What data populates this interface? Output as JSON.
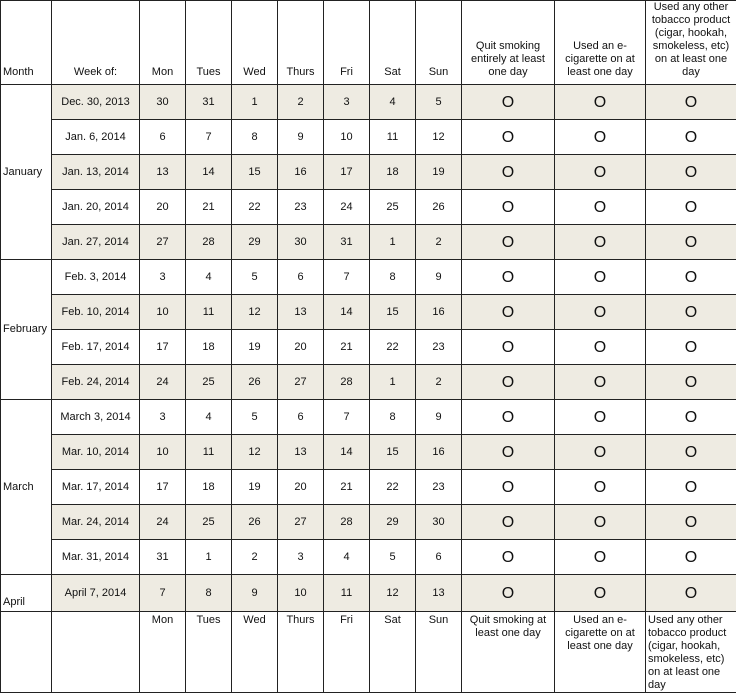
{
  "header": {
    "month": "Month",
    "week_of": "Week of:",
    "days": [
      "Mon",
      "Tues",
      "Wed",
      "Thurs",
      "Fri",
      "Sat",
      "Sun"
    ],
    "quit": "Quit smoking entirely at least one day",
    "ecig": "Used an e-cigarette on at least one day",
    "other": "Used any other tobacco product (cigar, hookah, smokeless, etc) on at least one day"
  },
  "months": [
    {
      "label": "January",
      "rows": 5
    },
    {
      "label": "February",
      "rows": 4
    },
    {
      "label": "March",
      "rows": 5
    },
    {
      "label": "April",
      "rows": 1
    }
  ],
  "circle": "O",
  "shade_color": "#eeebe2",
  "rows": [
    {
      "week": "Dec. 30, 2013",
      "days": [
        "30",
        "31",
        "1",
        "2",
        "3",
        "4",
        "5"
      ]
    },
    {
      "week": "Jan. 6, 2014",
      "days": [
        "6",
        "7",
        "8",
        "9",
        "10",
        "11",
        "12"
      ]
    },
    {
      "week": "Jan. 13, 2014",
      "days": [
        "13",
        "14",
        "15",
        "16",
        "17",
        "18",
        "19"
      ]
    },
    {
      "week": "Jan. 20, 2014",
      "days": [
        "20",
        "21",
        "22",
        "23",
        "24",
        "25",
        "26"
      ]
    },
    {
      "week": "Jan. 27, 2014",
      "days": [
        "27",
        "28",
        "29",
        "30",
        "31",
        "1",
        "2"
      ]
    },
    {
      "week": "Feb. 3, 2014",
      "days": [
        "3",
        "4",
        "5",
        "6",
        "7",
        "8",
        "9"
      ]
    },
    {
      "week": "Feb. 10, 2014",
      "days": [
        "10",
        "11",
        "12",
        "13",
        "14",
        "15",
        "16"
      ]
    },
    {
      "week": "Feb. 17, 2014",
      "days": [
        "17",
        "18",
        "19",
        "20",
        "21",
        "22",
        "23"
      ]
    },
    {
      "week": "Feb. 24, 2014",
      "days": [
        "24",
        "25",
        "26",
        "27",
        "28",
        "1",
        "2"
      ]
    },
    {
      "week": "March 3, 2014",
      "days": [
        "3",
        "4",
        "5",
        "6",
        "7",
        "8",
        "9"
      ]
    },
    {
      "week": "Mar. 10, 2014",
      "days": [
        "10",
        "11",
        "12",
        "13",
        "14",
        "15",
        "16"
      ]
    },
    {
      "week": "Mar. 17, 2014",
      "days": [
        "17",
        "18",
        "19",
        "20",
        "21",
        "22",
        "23"
      ]
    },
    {
      "week": "Mar. 24, 2014",
      "days": [
        "24",
        "25",
        "26",
        "27",
        "28",
        "29",
        "30"
      ]
    },
    {
      "week": "Mar. 31, 2014",
      "days": [
        "31",
        "1",
        "2",
        "3",
        "4",
        "5",
        "6"
      ]
    },
    {
      "week": "April 7, 2014",
      "days": [
        "7",
        "8",
        "9",
        "10",
        "11",
        "12",
        "13"
      ]
    }
  ],
  "footer": {
    "days": [
      "Mon",
      "Tues",
      "Wed",
      "Thurs",
      "Fri",
      "Sat",
      "Sun"
    ],
    "quit": "Quit smoking at least one day",
    "ecig": "Used an e-cigarette on at least one day",
    "other": "Used any other tobacco product (cigar, hookah, smokeless, etc) on at least one day"
  }
}
